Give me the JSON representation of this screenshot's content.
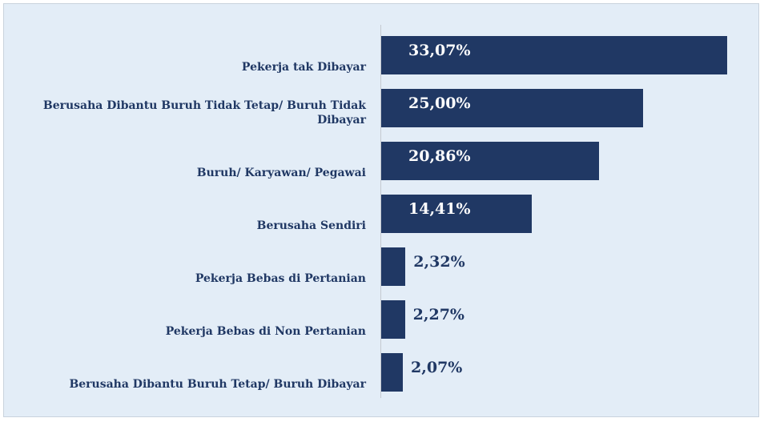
{
  "chart_data": {
    "type": "bar",
    "orientation": "horizontal",
    "categories": [
      "Pekerja tak Dibayar",
      "Berusaha Dibantu Buruh Tidak Tetap/ Buruh Tidak Dibayar",
      "Buruh/ Karyawan/ Pegawai",
      "Berusaha Sendiri",
      "Pekerja Bebas di Pertanian",
      "Pekerja Bebas di Non Pertanian",
      "Berusaha Dibantu Buruh Tetap/ Buruh Dibayar"
    ],
    "values": [
      33.07,
      25.0,
      20.86,
      14.41,
      2.32,
      2.27,
      2.07
    ],
    "value_labels": [
      "33,07%",
      "25,00%",
      "20,86%",
      "14,41%",
      "2,32%",
      "2,27%",
      "2,07%"
    ],
    "color": "#203864"
  }
}
